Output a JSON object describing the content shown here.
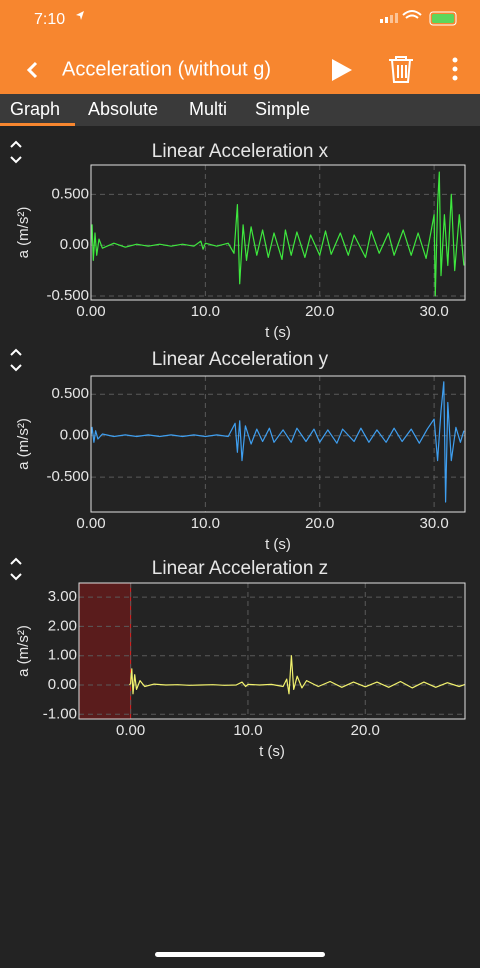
{
  "status_bar": {
    "time": "7:10"
  },
  "app_bar": {
    "title": "Acceleration (without g)"
  },
  "tabs": [
    "Graph",
    "Absolute",
    "Multi",
    "Simple"
  ],
  "chart_data": [
    {
      "type": "line",
      "title": "Linear Acceleration x",
      "x_label": "t (s)",
      "y_label": "a (m/s²)",
      "color": "#3ee83e",
      "xlim": [
        0,
        32.7
      ],
      "ylim": [
        -0.54,
        0.79
      ],
      "xticks": [
        {
          "value": 0,
          "label": "0.00"
        },
        {
          "value": 10,
          "label": "10.0"
        },
        {
          "value": 20,
          "label": "20.0"
        },
        {
          "value": 30,
          "label": "30.0"
        }
      ],
      "yticks": [
        {
          "value": -0.5,
          "label": "-0.500"
        },
        {
          "value": 0,
          "label": "0.00"
        },
        {
          "value": 0.5,
          "label": "0.500"
        }
      ],
      "x": [
        0,
        0.1,
        0.2,
        0.35,
        0.5,
        0.7,
        1,
        2,
        3,
        4,
        5,
        6,
        7,
        8,
        9,
        9.6,
        9.8,
        10,
        11,
        12,
        12.5,
        12.8,
        13,
        13.3,
        13.6,
        14,
        14.5,
        15,
        15.5,
        16,
        16.7,
        17,
        17.5,
        18,
        18.7,
        19.2,
        20,
        20.5,
        21,
        21.8,
        22.5,
        23,
        24,
        24.5,
        25.2,
        26,
        26.5,
        27.3,
        28,
        28.6,
        29.3,
        30,
        30.1,
        30.3,
        30.45,
        30.6,
        30.9,
        31.2,
        31.5,
        31.8,
        32.2,
        32.6
      ],
      "values": [
        0,
        0.2,
        -0.15,
        0.12,
        -0.1,
        0.06,
        -0.03,
        0.02,
        -0.02,
        0.01,
        -0.01,
        0.01,
        -0.01,
        0.01,
        -0.01,
        0.04,
        -0.04,
        0.02,
        -0.01,
        0.02,
        -0.08,
        0.4,
        -0.38,
        0.2,
        -0.15,
        0.18,
        -0.1,
        0.15,
        -0.12,
        0.12,
        -0.14,
        0.15,
        -0.1,
        0.13,
        -0.12,
        0.1,
        -0.1,
        0.14,
        -0.09,
        0.12,
        -0.1,
        0.1,
        -0.12,
        0.14,
        -0.08,
        0.12,
        -0.1,
        0.15,
        -0.1,
        0.12,
        -0.13,
        0.3,
        -0.5,
        0.4,
        0.72,
        -0.3,
        0.3,
        -0.2,
        0.5,
        -0.25,
        0.3,
        -0.2
      ]
    },
    {
      "type": "line",
      "title": "Linear Acceleration y",
      "x_label": "t (s)",
      "y_label": "a (m/s²)",
      "color": "#3f9ff0",
      "xlim": [
        0,
        32.7
      ],
      "ylim": [
        -0.92,
        0.72
      ],
      "xticks": [
        {
          "value": 0,
          "label": "0.00"
        },
        {
          "value": 10,
          "label": "10.0"
        },
        {
          "value": 20,
          "label": "20.0"
        },
        {
          "value": 30,
          "label": "30.0"
        }
      ],
      "yticks": [
        {
          "value": -0.5,
          "label": "-0.500"
        },
        {
          "value": 0,
          "label": "0.00"
        },
        {
          "value": 0.5,
          "label": "0.500"
        }
      ],
      "x": [
        0,
        0.1,
        0.25,
        0.4,
        0.6,
        1,
        2,
        3,
        4,
        5,
        6,
        7,
        8,
        9,
        10,
        11,
        12,
        12.6,
        12.8,
        13,
        13.2,
        13.5,
        14,
        14.5,
        15,
        15.6,
        16,
        16.8,
        17.5,
        18,
        18.8,
        19.5,
        20,
        20.7,
        21.5,
        22,
        23,
        23.6,
        24.3,
        25,
        25.8,
        26.5,
        27.2,
        28,
        28.7,
        29.4,
        30,
        30.3,
        30.6,
        30.85,
        31,
        31.2,
        31.5,
        31.9,
        32.3,
        32.6
      ],
      "values": [
        0,
        0.1,
        -0.08,
        0.06,
        -0.04,
        0.02,
        -0.01,
        0.01,
        -0.01,
        0.01,
        -0.01,
        0.01,
        -0.01,
        0.01,
        -0.01,
        0.01,
        -0.01,
        0.15,
        -0.2,
        0.18,
        -0.3,
        0.12,
        -0.1,
        0.08,
        -0.07,
        0.09,
        -0.08,
        0.07,
        -0.08,
        0.09,
        -0.07,
        0.08,
        -0.08,
        0.07,
        -0.09,
        0.08,
        -0.07,
        0.09,
        -0.08,
        0.07,
        -0.08,
        0.09,
        -0.07,
        0.08,
        -0.09,
        0.08,
        0.2,
        -0.3,
        0.3,
        0.65,
        -0.8,
        0.4,
        -0.3,
        0.1,
        -0.08,
        0.06
      ]
    },
    {
      "type": "line",
      "title": "Linear Acceleration z",
      "x_label": "t (s)",
      "y_label": "a (m/s²)",
      "color": "#f2f26e",
      "xlim": [
        -4.4,
        28.5
      ],
      "ylim": [
        -1.16,
        3.48
      ],
      "highlight_range": [
        -4.4,
        0
      ],
      "xticks": [
        {
          "value": 0,
          "label": "0.00"
        },
        {
          "value": 10,
          "label": "10.0"
        },
        {
          "value": 20,
          "label": "20.0"
        }
      ],
      "yticks": [
        {
          "value": -1,
          "label": "-1.00"
        },
        {
          "value": 0,
          "label": "0.00"
        },
        {
          "value": 1,
          "label": "1.00"
        },
        {
          "value": 2,
          "label": "2.00"
        },
        {
          "value": 3,
          "label": "3.00"
        }
      ],
      "x": [
        -0.1,
        0,
        0.1,
        0.2,
        0.35,
        0.5,
        0.8,
        1.2,
        2,
        3,
        4,
        5,
        6,
        7,
        8,
        9,
        9.5,
        9.8,
        10,
        11,
        12,
        13,
        13.3,
        13.5,
        13.7,
        13.9,
        14.2,
        14.6,
        15,
        16,
        17,
        18,
        19,
        20,
        21,
        22,
        23,
        24,
        25,
        26,
        27,
        28,
        28.5
      ],
      "values": [
        0,
        0.05,
        0.55,
        -0.3,
        0.35,
        -0.15,
        0.15,
        -0.05,
        0.03,
        0,
        0.01,
        -0.01,
        0,
        0.01,
        -0.01,
        0,
        0.1,
        -0.05,
        0.02,
        0,
        0.02,
        -0.05,
        0.2,
        -0.3,
        1.0,
        -0.15,
        0.3,
        -0.1,
        0.15,
        -0.05,
        0.12,
        -0.08,
        0.1,
        -0.06,
        0.1,
        -0.08,
        0.12,
        -0.1,
        0.1,
        -0.08,
        0.08,
        -0.05,
        0.02
      ]
    }
  ]
}
